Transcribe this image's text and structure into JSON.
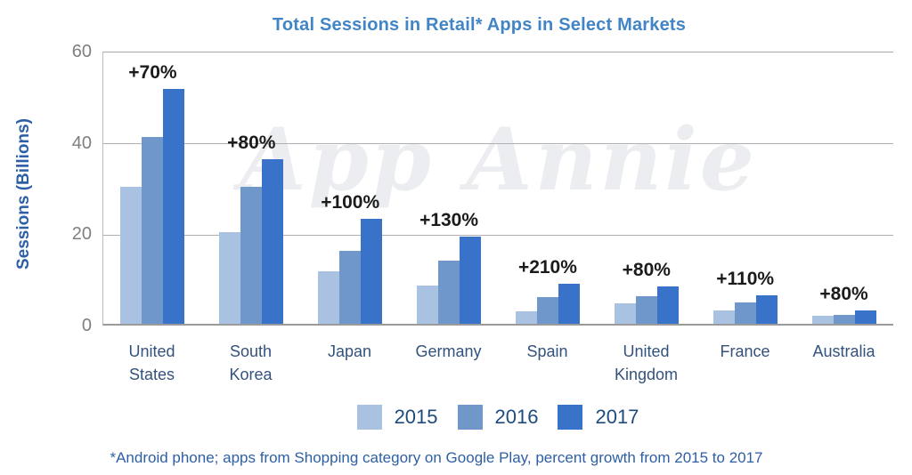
{
  "chart_data": {
    "type": "bar",
    "title": "Total Sessions in Retail* Apps in Select Markets",
    "xlabel": "",
    "ylabel": "Sessions (Billions)",
    "watermark": "App Annie",
    "footnote": "*Android phone; apps from Shopping category on Google Play, percent growth from 2015 to 2017",
    "ylim": [
      0,
      60
    ],
    "yticks": [
      0,
      20,
      40,
      60
    ],
    "grid": true,
    "legend_position": "bottom",
    "categories": [
      "United\nStates",
      "South\nKorea",
      "Japan",
      "Germany",
      "Spain",
      "United\nKingdom",
      "France",
      "Australia"
    ],
    "growth_labels": [
      "+70%",
      "+80%",
      "+100%",
      "+130%",
      "+210%",
      "+80%",
      "+110%",
      "+80%"
    ],
    "series": [
      {
        "name": "2015",
        "color": "#A9C2E2",
        "values": [
          30,
          20,
          11.5,
          8.3,
          2.8,
          4.5,
          3,
          1.7
        ]
      },
      {
        "name": "2016",
        "color": "#7097C9",
        "values": [
          41,
          30,
          16,
          13.8,
          5.8,
          6.1,
          4.7,
          2
        ]
      },
      {
        "name": "2017",
        "color": "#3873C9",
        "values": [
          51.5,
          36,
          23,
          19,
          8.8,
          8.2,
          6.3,
          3
        ]
      }
    ],
    "colors": {
      "title": "#4285C7",
      "axis_label": "#2D5FA6",
      "tick_label": "#7F7F7F",
      "category_label": "#33527C",
      "legend_label": "#1E4B7D",
      "footnote": "#2E5FA3",
      "growth_label": "#1B1B1B",
      "gridline": "#AFAFB3",
      "watermark": "#EBEDF0"
    }
  }
}
